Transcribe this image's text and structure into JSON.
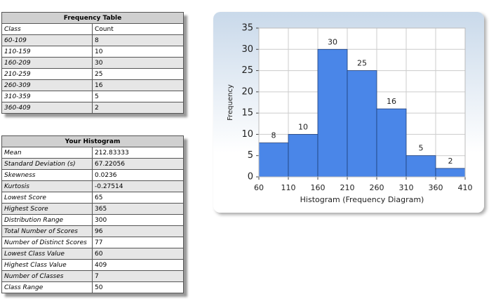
{
  "frequency_table": {
    "title": "Frequency Table",
    "header": [
      "Class",
      "Count"
    ],
    "rows": [
      [
        "60-109",
        "8"
      ],
      [
        "110-159",
        "10"
      ],
      [
        "160-209",
        "30"
      ],
      [
        "210-259",
        "25"
      ],
      [
        "260-309",
        "16"
      ],
      [
        "310-359",
        "5"
      ],
      [
        "360-409",
        "2"
      ]
    ]
  },
  "summary_table": {
    "title": "Your Histogram",
    "rows": [
      [
        "Mean",
        "212.83333"
      ],
      [
        "Standard Deviation (s)",
        "67.22056"
      ],
      [
        "Skewness",
        "0.0236"
      ],
      [
        "Kurtosis",
        "-0.27514"
      ],
      [
        "Lowest Score",
        "65"
      ],
      [
        "Highest Score",
        "365"
      ],
      [
        "Distribution Range",
        "300"
      ],
      [
        "Total Number of Scores",
        "96"
      ],
      [
        "Number of Distinct Scores",
        "77"
      ],
      [
        "Lowest Class Value",
        "60"
      ],
      [
        "Highest Class Value",
        "409"
      ],
      [
        "Number of Classes",
        "7"
      ],
      [
        "Class Range",
        "50"
      ]
    ]
  },
  "chart_data": {
    "type": "histogram",
    "x_label": "Histogram (Frequency Diagram)",
    "y_label": "Frequency",
    "bins": [
      60,
      110,
      160,
      210,
      260,
      310,
      360,
      410
    ],
    "values": [
      8,
      10,
      30,
      25,
      16,
      5,
      2
    ],
    "color": "#4a86e8",
    "xlim": [
      60,
      410
    ],
    "xticks": [
      60,
      110,
      160,
      210,
      260,
      310,
      360,
      410
    ],
    "ylim": [
      0,
      35
    ],
    "yticks": [
      0,
      5,
      10,
      15,
      20,
      25,
      30,
      35
    ],
    "grid": true
  }
}
